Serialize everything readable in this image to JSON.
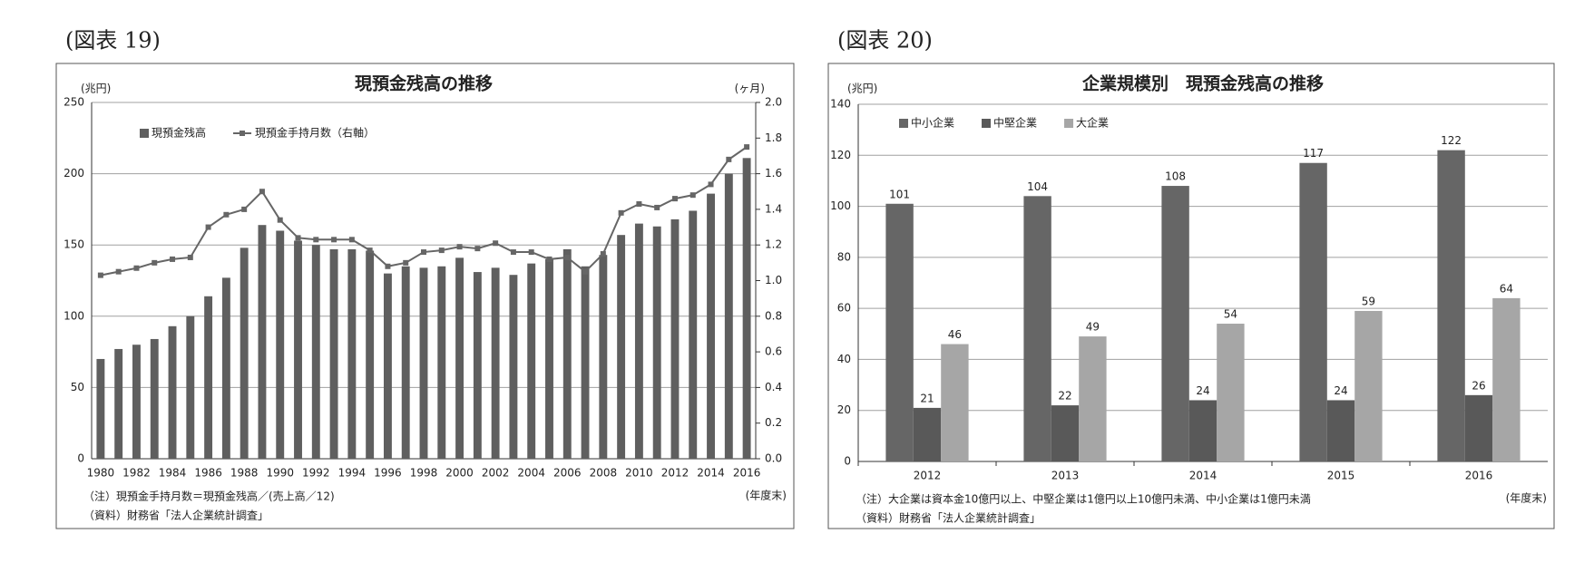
{
  "chart_data": [
    {
      "type": "bar",
      "figure_label": "(図表 19)",
      "title": "現預金残高の推移",
      "y_unit": "(兆円)",
      "y2_unit": "(ヶ月)",
      "x_unit": "(年度末)",
      "notes": [
        "（注）現預金手持月数＝現預金残高／(売上高／12)",
        "（資料）財務省「法人企業統計調査」"
      ],
      "categories": [
        "1980",
        null,
        "1982",
        null,
        "1984",
        null,
        "1986",
        null,
        "1988",
        null,
        "1990",
        null,
        "1992",
        null,
        "1994",
        null,
        "1996",
        null,
        "1998",
        null,
        "2000",
        null,
        "2002",
        null,
        "2004",
        null,
        "2006",
        null,
        "2008",
        null,
        "2010",
        null,
        "2012",
        null,
        "2014",
        null,
        "2016"
      ],
      "series": [
        {
          "name": "現預金残高",
          "color": "#5f5f5f",
          "values": [
            70,
            77,
            80,
            84,
            93,
            100,
            114,
            127,
            148,
            164,
            160,
            153,
            150,
            147,
            147,
            146,
            130,
            135,
            134,
            135,
            141,
            131,
            134,
            129,
            137,
            140,
            147,
            135,
            143,
            157,
            165,
            163,
            168,
            174,
            186,
            200,
            211
          ]
        },
        {
          "name": "現預金手持月数（右軸）",
          "type": "line",
          "axis": "y2",
          "color": "#666666",
          "values": [
            1.03,
            1.05,
            1.07,
            1.1,
            1.12,
            1.13,
            1.3,
            1.37,
            1.4,
            1.5,
            1.34,
            1.24,
            1.23,
            1.23,
            1.23,
            1.17,
            1.08,
            1.1,
            1.16,
            1.17,
            1.19,
            1.18,
            1.21,
            1.16,
            1.16,
            1.12,
            1.13,
            1.05,
            1.15,
            1.38,
            1.43,
            1.41,
            1.46,
            1.48,
            1.54,
            1.68,
            1.75
          ]
        }
      ],
      "ylim": [
        0,
        250
      ],
      "yticks": [
        0,
        50,
        100,
        150,
        200,
        250
      ],
      "y2lim": [
        0,
        2
      ],
      "y2ticks": [
        {
          "value": 0,
          "label": "0.0"
        },
        0.2,
        0.4,
        0.6,
        0.8,
        {
          "value": 1,
          "label": "1.0"
        },
        1.2,
        1.4,
        1.6,
        1.8,
        {
          "value": 2,
          "label": "2.0"
        }
      ],
      "grid": true,
      "legend": "top-left"
    },
    {
      "type": "bar",
      "figure_label": "(図表 20)",
      "title": "企業規模別　現預金残高の推移",
      "y_unit": "(兆円)",
      "x_unit": "(年度末)",
      "notes": [
        "（注）大企業は資本金10億円以上、中堅企業は1億円以上10億円未満、中小企業は1億円未満",
        "（資料）財務省「法人企業統計調査」"
      ],
      "categories": [
        "2012",
        "2013",
        "2014",
        "2015",
        "2016"
      ],
      "series": [
        {
          "name": "中小企業",
          "color": "#666666",
          "values": [
            101,
            104,
            108,
            117,
            122
          ]
        },
        {
          "name": "中堅企業",
          "color": "#595959",
          "values": [
            21,
            22,
            24,
            24,
            26
          ]
        },
        {
          "name": "大企業",
          "color": "#a6a6a6",
          "values": [
            46,
            49,
            54,
            59,
            64
          ]
        }
      ],
      "ylim": [
        0,
        140
      ],
      "yticks": [
        0,
        20,
        40,
        60,
        80,
        100,
        120,
        140
      ],
      "grid": true,
      "legend": "top-left"
    }
  ]
}
